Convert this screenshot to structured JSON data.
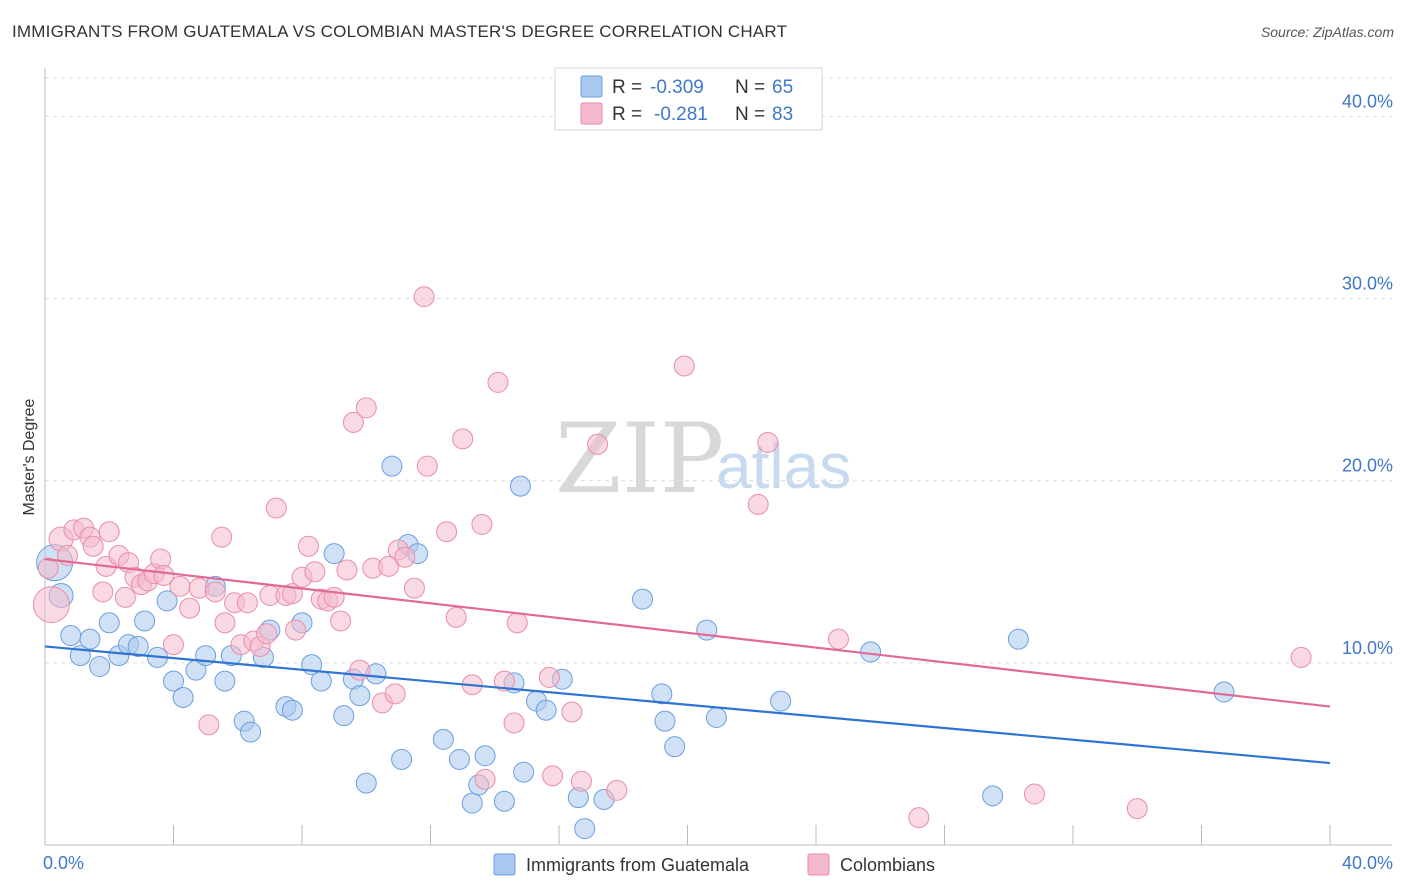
{
  "header": {
    "title": "IMMIGRANTS FROM GUATEMALA VS COLOMBIAN MASTER'S DEGREE CORRELATION CHART",
    "source": "Source: ZipAtlas.com"
  },
  "watermark": {
    "zip": "ZIP",
    "atlas": "atlas"
  },
  "legend": {
    "rows": [
      {
        "r_label": "R =",
        "r_value": "-0.309",
        "n_label": "N =",
        "n_value": "65",
        "color": "#a9c8ef"
      },
      {
        "r_label": "R =",
        "r_value": "-0.281",
        "n_label": "N =",
        "n_value": "83",
        "color": "#f4b9cb"
      }
    ]
  },
  "bottom_legend": [
    {
      "label": "Immigrants from Guatemala",
      "color": "#a9c8ef"
    },
    {
      "label": "Colombians",
      "color": "#f4b9cb"
    }
  ],
  "chart_data": {
    "type": "scatter",
    "title": "IMMIGRANTS FROM GUATEMALA VS COLOMBIAN MASTER'S DEGREE CORRELATION CHART",
    "xlabel": "",
    "ylabel": "Master's Degree",
    "xlim": [
      0,
      40
    ],
    "ylim": [
      0,
      42
    ],
    "x_tick_labels": [
      "0.0%",
      "40.0%"
    ],
    "y_ticks": [
      10,
      20,
      30,
      40
    ],
    "y_tick_labels": [
      "10.0%",
      "20.0%",
      "30.0%",
      "40.0%"
    ],
    "grid": true,
    "legend_position": "top-center",
    "series": [
      {
        "name": "Immigrants from Guatemala",
        "color": "#6a9fe0",
        "fill": "#a9c8ef",
        "trend_color": "#2f74d0",
        "trend": {
          "x0": 0,
          "y0": 10.9,
          "x1": 40,
          "y1": 4.5
        },
        "points": [
          [
            0.3,
            15.5,
            18
          ],
          [
            0.5,
            13.7,
            12
          ],
          [
            0.8,
            11.5,
            10
          ],
          [
            1.1,
            10.4,
            10
          ],
          [
            1.4,
            11.3,
            10
          ],
          [
            1.7,
            9.8,
            10
          ],
          [
            2.0,
            12.2,
            10
          ],
          [
            2.3,
            10.4,
            10
          ],
          [
            2.6,
            11.0,
            10
          ],
          [
            2.9,
            10.9,
            10
          ],
          [
            3.1,
            12.3,
            10
          ],
          [
            3.5,
            10.3,
            10
          ],
          [
            3.8,
            13.4,
            10
          ],
          [
            4.0,
            9.0,
            10
          ],
          [
            4.3,
            8.1,
            10
          ],
          [
            4.7,
            9.6,
            10
          ],
          [
            5.0,
            10.4,
            10
          ],
          [
            5.3,
            14.2,
            10
          ],
          [
            5.6,
            9.0,
            10
          ],
          [
            5.8,
            10.4,
            10
          ],
          [
            6.2,
            6.8,
            10
          ],
          [
            6.4,
            6.2,
            10
          ],
          [
            6.8,
            10.3,
            10
          ],
          [
            7.0,
            11.8,
            10
          ],
          [
            7.5,
            7.6,
            10
          ],
          [
            7.7,
            7.4,
            10
          ],
          [
            8.0,
            12.2,
            10
          ],
          [
            8.3,
            9.9,
            10
          ],
          [
            8.6,
            9.0,
            10
          ],
          [
            9.0,
            16.0,
            10
          ],
          [
            9.3,
            7.1,
            10
          ],
          [
            9.6,
            9.1,
            10
          ],
          [
            9.8,
            8.2,
            10
          ],
          [
            10.0,
            3.4,
            10
          ],
          [
            10.3,
            9.4,
            10
          ],
          [
            10.8,
            20.8,
            10
          ],
          [
            11.1,
            4.7,
            10
          ],
          [
            11.3,
            16.5,
            10
          ],
          [
            11.6,
            16.0,
            10
          ],
          [
            12.4,
            5.8,
            10
          ],
          [
            12.9,
            4.7,
            10
          ],
          [
            13.3,
            2.3,
            10
          ],
          [
            13.5,
            3.3,
            10
          ],
          [
            13.7,
            4.9,
            10
          ],
          [
            14.3,
            2.4,
            10
          ],
          [
            14.6,
            8.9,
            10
          ],
          [
            14.8,
            19.7,
            10
          ],
          [
            14.9,
            4.0,
            10
          ],
          [
            15.3,
            7.9,
            10
          ],
          [
            15.6,
            7.4,
            10
          ],
          [
            16.1,
            9.1,
            10
          ],
          [
            16.6,
            2.6,
            10
          ],
          [
            16.8,
            0.9,
            10
          ],
          [
            17.4,
            2.5,
            10
          ],
          [
            18.6,
            13.5,
            10
          ],
          [
            19.2,
            8.3,
            10
          ],
          [
            19.3,
            6.8,
            10
          ],
          [
            19.6,
            5.4,
            10
          ],
          [
            20.6,
            11.8,
            10
          ],
          [
            20.9,
            7.0,
            10
          ],
          [
            22.9,
            7.9,
            10
          ],
          [
            25.7,
            10.6,
            10
          ],
          [
            30.3,
            11.3,
            10
          ],
          [
            29.5,
            2.7,
            10
          ],
          [
            36.7,
            8.4,
            10
          ]
        ]
      },
      {
        "name": "Colombians",
        "color": "#ea8daa",
        "fill": "#f4b9cb",
        "trend_color": "#e06a94",
        "trend": {
          "x0": 0,
          "y0": 15.7,
          "x1": 40,
          "y1": 7.6
        },
        "points": [
          [
            0.2,
            13.2,
            18
          ],
          [
            0.5,
            16.8,
            12
          ],
          [
            0.7,
            15.9,
            10
          ],
          [
            0.9,
            17.3,
            10
          ],
          [
            1.2,
            17.4,
            10
          ],
          [
            1.4,
            16.9,
            10
          ],
          [
            1.5,
            16.4,
            10
          ],
          [
            1.8,
            13.9,
            10
          ],
          [
            1.9,
            15.3,
            10
          ],
          [
            2.0,
            17.2,
            10
          ],
          [
            2.3,
            15.9,
            10
          ],
          [
            2.5,
            13.6,
            10
          ],
          [
            2.6,
            15.5,
            10
          ],
          [
            2.8,
            14.7,
            10
          ],
          [
            3.0,
            14.3,
            10
          ],
          [
            3.2,
            14.5,
            10
          ],
          [
            3.4,
            14.9,
            10
          ],
          [
            3.6,
            15.7,
            10
          ],
          [
            3.7,
            14.8,
            10
          ],
          [
            4.0,
            11.0,
            10
          ],
          [
            4.2,
            14.2,
            10
          ],
          [
            4.5,
            13.0,
            10
          ],
          [
            4.8,
            14.1,
            10
          ],
          [
            5.1,
            6.6,
            10
          ],
          [
            5.3,
            13.9,
            10
          ],
          [
            5.5,
            16.9,
            10
          ],
          [
            5.6,
            12.2,
            10
          ],
          [
            5.9,
            13.3,
            10
          ],
          [
            6.1,
            11.0,
            10
          ],
          [
            6.3,
            13.3,
            10
          ],
          [
            6.5,
            11.2,
            10
          ],
          [
            6.7,
            10.9,
            10
          ],
          [
            6.9,
            11.6,
            10
          ],
          [
            7.0,
            13.7,
            10
          ],
          [
            7.2,
            18.5,
            10
          ],
          [
            7.5,
            13.7,
            10
          ],
          [
            7.7,
            13.8,
            10
          ],
          [
            7.8,
            11.8,
            10
          ],
          [
            8.0,
            14.7,
            10
          ],
          [
            8.2,
            16.4,
            10
          ],
          [
            8.4,
            15.0,
            10
          ],
          [
            8.6,
            13.5,
            10
          ],
          [
            8.8,
            13.4,
            10
          ],
          [
            9.0,
            13.6,
            10
          ],
          [
            9.2,
            12.3,
            10
          ],
          [
            9.4,
            15.1,
            10
          ],
          [
            9.6,
            23.2,
            10
          ],
          [
            9.8,
            9.6,
            10
          ],
          [
            10.0,
            24.0,
            10
          ],
          [
            10.2,
            15.2,
            10
          ],
          [
            10.5,
            7.8,
            10
          ],
          [
            10.7,
            15.3,
            10
          ],
          [
            10.9,
            8.3,
            10
          ],
          [
            11.0,
            16.2,
            10
          ],
          [
            11.2,
            15.8,
            10
          ],
          [
            11.5,
            14.1,
            10
          ],
          [
            11.8,
            30.1,
            10
          ],
          [
            11.9,
            20.8,
            10
          ],
          [
            12.5,
            17.2,
            10
          ],
          [
            12.8,
            12.5,
            10
          ],
          [
            13.0,
            22.3,
            10
          ],
          [
            13.3,
            8.8,
            10
          ],
          [
            13.6,
            17.6,
            10
          ],
          [
            13.7,
            3.6,
            10
          ],
          [
            14.1,
            25.4,
            10
          ],
          [
            14.3,
            9.0,
            10
          ],
          [
            14.6,
            6.7,
            10
          ],
          [
            14.7,
            12.2,
            10
          ],
          [
            15.7,
            9.2,
            10
          ],
          [
            15.8,
            3.8,
            10
          ],
          [
            16.4,
            7.3,
            10
          ],
          [
            16.7,
            3.5,
            10
          ],
          [
            17.2,
            22.0,
            10
          ],
          [
            17.8,
            3.0,
            10
          ],
          [
            19.9,
            26.3,
            10
          ],
          [
            22.2,
            18.7,
            10
          ],
          [
            22.5,
            22.1,
            10
          ],
          [
            24.7,
            11.3,
            10
          ],
          [
            27.2,
            1.5,
            10
          ],
          [
            30.8,
            2.8,
            10
          ],
          [
            34.0,
            2.0,
            10
          ],
          [
            39.1,
            10.3,
            10
          ],
          [
            0.1,
            15.2,
            10
          ]
        ]
      }
    ]
  }
}
